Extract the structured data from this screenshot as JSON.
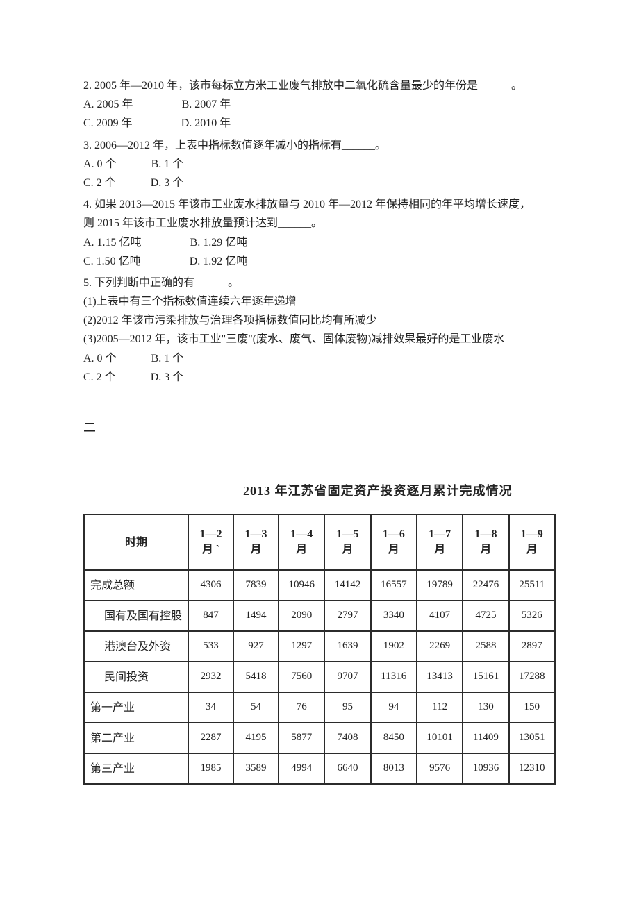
{
  "q2": {
    "stem": "2. 2005 年—2010 年，该市每标立方米工业废气排放中二氧化硫含量最少的年份是______。",
    "a": "A. 2005 年",
    "b": "B. 2007 年",
    "c": "C. 2009 年",
    "d": "D. 2010 年"
  },
  "q3": {
    "stem": "3. 2006—2012 年，上表中指标数值逐年减小的指标有______。",
    "a": "A. 0 个",
    "b": "B. 1 个",
    "c": "C. 2 个",
    "d": "D. 3 个"
  },
  "q4": {
    "stem1": "4.  如果 2013—2015 年该市工业废水排放量与 2010 年—2012 年保持相同的年平均增长速度，",
    "stem2": "则 2015 年该市工业废水排放量预计达到______。",
    "a": "A. 1.15 亿吨",
    "b": "B. 1.29 亿吨",
    "c": "C. 1.50 亿吨",
    "d": "D. 1.92 亿吨"
  },
  "q5": {
    "stem": "5.  下列判断中正确的有______。",
    "s1": " (1)上表中有三个指标数值连续六年逐年递增",
    "s2": " (2)2012 年该市污染排放与治理各项指标数值同比均有所减少",
    "s3": " (3)2005—2012 年，该市工业\"三废\"(废水、废气、固体废物)减排效果最好的是工业废水",
    "a": "A. 0 个",
    "b": "B. 1 个",
    "c": "C. 2 个",
    "d": "D. 3 个"
  },
  "section2": "二",
  "table": {
    "title": "2013 年江苏省固定资产投资逐月累计完成情况",
    "header_period": "时期",
    "columns": [
      {
        "l1": "1—2",
        "l2": "月 ˋ"
      },
      {
        "l1": "1—3",
        "l2": "月"
      },
      {
        "l1": "1—4",
        "l2": "月"
      },
      {
        "l1": "1—5",
        "l2": "月"
      },
      {
        "l1": "1—6",
        "l2": "月"
      },
      {
        "l1": "1—7",
        "l2": "月"
      },
      {
        "l1": "1—8",
        "l2": "月"
      },
      {
        "l1": "1—9",
        "l2": "月"
      }
    ],
    "rows": [
      {
        "label": "完成总额",
        "cls": "left-label",
        "cells": [
          "4306",
          "7839",
          "10946",
          "14142",
          "16557",
          "19789",
          "22476",
          "25511"
        ]
      },
      {
        "label": "国有及国有控股",
        "cls": "indent1",
        "cells": [
          "847",
          "1494",
          "2090",
          "2797",
          "3340",
          "4107",
          "4725",
          "5326"
        ]
      },
      {
        "label": "港澳台及外资",
        "cls": "indent1",
        "cells": [
          "533",
          "927",
          "1297",
          "1639",
          "1902",
          "2269",
          "2588",
          "2897"
        ]
      },
      {
        "label": "民间投资",
        "cls": "indent1",
        "cells": [
          "2932",
          "5418",
          "7560",
          "9707",
          "11316",
          "13413",
          "15161",
          "17288"
        ]
      },
      {
        "label": "第一产业",
        "cls": "left-label",
        "cells": [
          "34",
          "54",
          "76",
          "95",
          "94",
          "112",
          "130",
          "150"
        ]
      },
      {
        "label": "第二产业",
        "cls": "left-label",
        "cells": [
          "2287",
          "4195",
          "5877",
          "7408",
          "8450",
          "10101",
          "11409",
          "13051"
        ]
      },
      {
        "label": "第三产业",
        "cls": "left-label",
        "cells": [
          "1985",
          "3589",
          "4994",
          "6640",
          "8013",
          "9576",
          "10936",
          "12310"
        ]
      }
    ]
  }
}
